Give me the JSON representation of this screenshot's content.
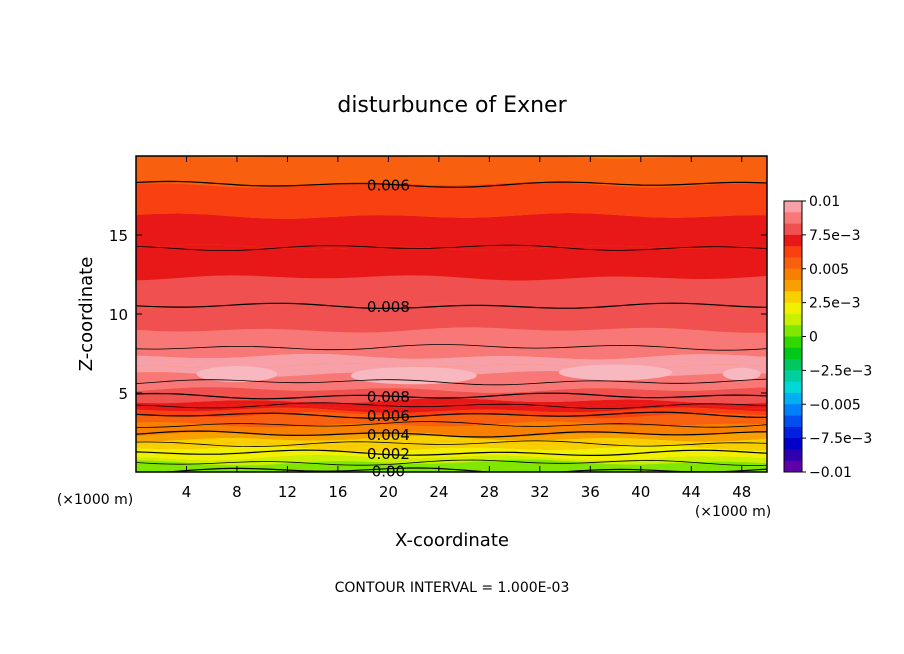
{
  "chart_data": {
    "type": "heatmap",
    "title": "disturbunce of Exner",
    "xlabel": "X-coordinate",
    "ylabel": "Z-coordinate",
    "xunit": "(×1000 m)",
    "yunit": "(×1000 m)",
    "footer": "CONTOUR INTERVAL = 1.000E-03",
    "xlim": [
      0,
      50
    ],
    "ylim": [
      0,
      20
    ],
    "x_ticks": [
      4,
      8,
      12,
      16,
      20,
      24,
      28,
      32,
      36,
      40,
      44,
      48
    ],
    "y_ticks": [
      5,
      10,
      15
    ],
    "colorbar": {
      "range": [
        -0.01,
        0.01
      ],
      "tick_values": [
        0.01,
        0.0075,
        0.005,
        0.0025,
        0,
        -0.0025,
        -0.005,
        -0.0075,
        -0.01
      ],
      "tick_labels": [
        "0.01",
        "7.5e−3",
        "0.005",
        "2.5e−3",
        "0",
        "−2.5e−3",
        "−0.005",
        "−7.5e−3",
        "−0.01"
      ],
      "colors": [
        "#f8a0a8",
        "#f87878",
        "#f05050",
        "#e81818",
        "#f84010",
        "#f86010",
        "#f88000",
        "#f8a000",
        "#f8d000",
        "#f0f000",
        "#c8f000",
        "#80e800",
        "#30d800",
        "#00c818",
        "#00c860",
        "#00d0a0",
        "#00d8d8",
        "#00b0f0",
        "#0080f8",
        "#0050f0",
        "#0020e0",
        "#0000c8",
        "#3000b0",
        "#6000a8"
      ]
    },
    "profile": [
      {
        "z": 0.0,
        "value": 0.0
      },
      {
        "z": 0.3,
        "value": 0.0005
      },
      {
        "z": 0.6,
        "value": 0.001
      },
      {
        "z": 0.9,
        "value": 0.0015
      },
      {
        "z": 1.2,
        "value": 0.002
      },
      {
        "z": 1.5,
        "value": 0.0025
      },
      {
        "z": 1.8,
        "value": 0.003
      },
      {
        "z": 2.1,
        "value": 0.0035
      },
      {
        "z": 2.4,
        "value": 0.004
      },
      {
        "z": 2.7,
        "value": 0.0045
      },
      {
        "z": 3.0,
        "value": 0.005
      },
      {
        "z": 3.3,
        "value": 0.0055
      },
      {
        "z": 3.6,
        "value": 0.006
      },
      {
        "z": 3.9,
        "value": 0.0065
      },
      {
        "z": 4.2,
        "value": 0.007
      },
      {
        "z": 4.5,
        "value": 0.0075
      },
      {
        "z": 4.8,
        "value": 0.008
      },
      {
        "z": 5.2,
        "value": 0.0085
      },
      {
        "z": 5.7,
        "value": 0.009
      },
      {
        "z": 6.2,
        "value": 0.0093
      },
      {
        "z": 6.7,
        "value": 0.0095
      },
      {
        "z": 7.3,
        "value": 0.0092
      },
      {
        "z": 7.9,
        "value": 0.009
      },
      {
        "z": 9.0,
        "value": 0.0085
      },
      {
        "z": 10.5,
        "value": 0.008
      },
      {
        "z": 12.3,
        "value": 0.0075
      },
      {
        "z": 14.2,
        "value": 0.007
      },
      {
        "z": 16.2,
        "value": 0.0065
      },
      {
        "z": 18.2,
        "value": 0.006
      },
      {
        "z": 20.0,
        "value": 0.0056
      }
    ],
    "contour_lines": [
      {
        "value": 0.006,
        "z": 18.2,
        "label": "0.006",
        "label_x": 20
      },
      {
        "value": 0.007,
        "z": 14.2,
        "label": "",
        "label_x": 0
      },
      {
        "value": 0.008,
        "z": 10.5,
        "label": "0.008",
        "label_x": 20
      },
      {
        "value": 0.009,
        "z": 7.9,
        "label": "",
        "label_x": 0
      },
      {
        "value": 0.009,
        "z": 5.7,
        "label": "",
        "label_x": 0
      },
      {
        "value": 0.008,
        "z": 4.8,
        "label": "0.008",
        "label_x": 20
      },
      {
        "value": 0.007,
        "z": 4.2,
        "label": "",
        "label_x": 0
      },
      {
        "value": 0.006,
        "z": 3.6,
        "label": "0.006",
        "label_x": 20
      },
      {
        "value": 0.005,
        "z": 3.0,
        "label": "",
        "label_x": 0
      },
      {
        "value": 0.004,
        "z": 2.4,
        "label": "0.004",
        "label_x": 20
      },
      {
        "value": 0.003,
        "z": 1.8,
        "label": "",
        "label_x": 0
      },
      {
        "value": 0.002,
        "z": 1.2,
        "label": "0.002",
        "label_x": 20
      },
      {
        "value": 0.001,
        "z": 0.6,
        "label": "",
        "label_x": 0
      },
      {
        "value": 0.0,
        "z": 0.1,
        "label": "0.00",
        "label_x": 20
      }
    ],
    "grid": false,
    "legend": "right"
  }
}
